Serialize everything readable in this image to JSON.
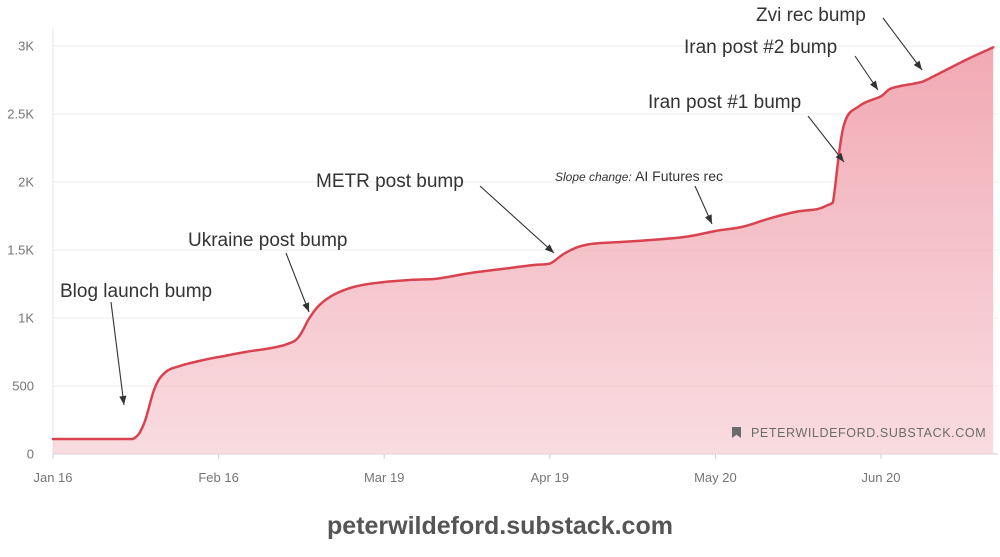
{
  "chart_data": {
    "type": "area",
    "title": "",
    "xlabel": "",
    "ylabel": "",
    "x_tick_labels": [
      "Jan 16",
      "Feb 16",
      "Mar 19",
      "Apr 19",
      "May 20",
      "Jun 20"
    ],
    "y_tick_labels": [
      "0",
      "500",
      "1K",
      "1.5K",
      "2K",
      "2.5K",
      "3K"
    ],
    "y_tick_values": [
      0,
      500,
      1000,
      1500,
      2000,
      2500,
      3000
    ],
    "ylim": [
      0,
      3150
    ],
    "grid": "horizontal",
    "line_color": "#d9434f",
    "fill_color": "#f3bfc6",
    "series": [
      {
        "x": [
          "Jan 16",
          "Jan 20",
          "Jan 24",
          "Jan 28",
          "Jan 31",
          "Feb 2",
          "Feb 4",
          "Feb 6",
          "Feb 9",
          "Feb 13",
          "Feb 17",
          "Feb 21",
          "Feb 26",
          "Mar 1",
          "Mar 3",
          "Mar 5",
          "Mar 7",
          "Mar 10",
          "Mar 14",
          "Mar 19",
          "Mar 24",
          "Mar 29",
          "Apr 4",
          "Apr 10",
          "Apr 16",
          "Apr 19",
          "Apr 22",
          "Apr 26",
          "May 3",
          "May 10",
          "May 15",
          "May 20",
          "May 25",
          "May 30",
          "Jun 4",
          "Jun 8",
          "Jun 10",
          "Jun 11",
          "Jun 13",
          "Jun 16",
          "Jun 20",
          "Jun 22",
          "Jun 27",
          "Jun 29",
          "Jul 6",
          "Jul 11"
        ],
        "y": [
          110,
          110,
          110,
          110,
          110,
          220,
          480,
          600,
          650,
          690,
          720,
          750,
          780,
          810,
          860,
          1000,
          1100,
          1180,
          1235,
          1265,
          1280,
          1290,
          1330,
          1360,
          1390,
          1400,
          1480,
          1540,
          1560,
          1580,
          1600,
          1640,
          1670,
          1730,
          1780,
          1800,
          1830,
          1850,
          2410,
          2560,
          2630,
          2690,
          2730,
          2760,
          2900,
          2990
        ]
      }
    ],
    "annotations": [
      {
        "text": "Blog launch bump",
        "x": "Feb 2",
        "y": 350
      },
      {
        "text": "Ukraine post bump",
        "x": "Mar 3",
        "y": 1040
      },
      {
        "text": "METR post bump",
        "x": "Apr 19",
        "y": 1470
      },
      {
        "text": "Slope change:",
        "text2": "AI Futures rec",
        "x": "May 20",
        "y": 1660
      },
      {
        "text": "Iran post #1 bump",
        "x": "Jun 11",
        "y": 2140
      },
      {
        "text": "Iran post #2 bump",
        "x": "Jun 20",
        "y": 2660
      },
      {
        "text": "Zvi rec bump",
        "x": "Jun 29",
        "y": 2840
      }
    ],
    "watermark": "PETERWILDEFORD.SUBSTACK.COM"
  },
  "footer": "peterwildeford.substack.com"
}
